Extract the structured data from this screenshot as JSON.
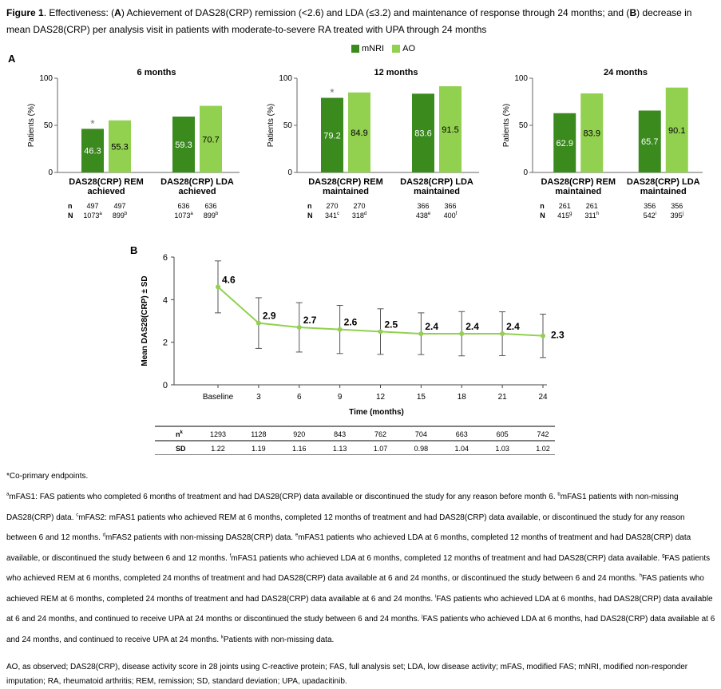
{
  "figure_title": {
    "label": "Figure 1",
    "text_1": ". Effectiveness: (",
    "a": "A",
    "text_2": ") Achievement of DAS28(CRP) remission (<2.6) and LDA (≤3.2) and maintenance of response through 24 months; and (",
    "b": "B",
    "text_3": ") decrease in mean DAS28(CRP) per analysis visit in patients with moderate-to-severe RA treated with UPA through 24 months"
  },
  "panel_a_label": "A",
  "panel_b_label": "B",
  "legend": [
    {
      "name": "mNRI",
      "color": "#3a8a1e"
    },
    {
      "name": "AO",
      "color": "#92d050"
    }
  ],
  "colors": {
    "mnri": "#3a8a1e",
    "ao": "#92d050",
    "line": "#92d050"
  },
  "chart_data": [
    {
      "type": "bar",
      "title": "6 months",
      "ylabel": "Patients (%)",
      "ylim": [
        0,
        100
      ],
      "yticks": [
        0,
        50,
        100
      ],
      "categories": [
        "DAS28(CRP) REM achieved",
        "DAS28(CRP) LDA achieved"
      ],
      "category_lines": [
        [
          "DAS28(CRP) REM",
          "achieved"
        ],
        [
          "DAS28(CRP) LDA",
          "achieved"
        ]
      ],
      "series": [
        {
          "name": "mNRI",
          "values": [
            46.3,
            59.3
          ],
          "labels": [
            "46.3",
            "59.3"
          ]
        },
        {
          "name": "AO",
          "values": [
            55.3,
            70.7
          ],
          "labels": [
            "55.3",
            "70.7"
          ]
        }
      ],
      "asterisk": "*",
      "n_label": "n",
      "N_label": "N",
      "n": [
        [
          "497",
          "497"
        ],
        [
          "636",
          "636"
        ]
      ],
      "N": [
        [
          [
            "1073",
            "a"
          ],
          [
            "899",
            "b"
          ]
        ],
        [
          [
            "1073",
            "a"
          ],
          [
            "899",
            "b"
          ]
        ]
      ]
    },
    {
      "type": "bar",
      "title": "12 months",
      "ylabel": "Patients (%)",
      "ylim": [
        0,
        100
      ],
      "yticks": [
        0,
        50,
        100
      ],
      "categories": [
        "DAS28(CRP) REM maintained",
        "DAS28(CRP) LDA maintained"
      ],
      "category_lines": [
        [
          "DAS28(CRP) REM",
          "maintained"
        ],
        [
          "DAS28(CRP) LDA",
          "maintained"
        ]
      ],
      "series": [
        {
          "name": "mNRI",
          "values": [
            79.2,
            83.6
          ],
          "labels": [
            "79.2",
            "83.6"
          ]
        },
        {
          "name": "AO",
          "values": [
            84.9,
            91.5
          ],
          "labels": [
            "84.9",
            "91.5"
          ]
        }
      ],
      "asterisk": "*",
      "n_label": "n",
      "N_label": "N",
      "n": [
        [
          "270",
          "270"
        ],
        [
          "366",
          "366"
        ]
      ],
      "N": [
        [
          [
            "341",
            "c"
          ],
          [
            "318",
            "d"
          ]
        ],
        [
          [
            "438",
            "e"
          ],
          [
            "400",
            "f"
          ]
        ]
      ]
    },
    {
      "type": "bar",
      "title": "24 months",
      "ylabel": "Patients (%)",
      "ylim": [
        0,
        100
      ],
      "yticks": [
        0,
        50,
        100
      ],
      "categories": [
        "DAS28(CRP) REM maintained",
        "DAS28(CRP) LDA maintained"
      ],
      "category_lines": [
        [
          "DAS28(CRP) REM",
          "maintained"
        ],
        [
          "DAS28(CRP) LDA",
          "maintained"
        ]
      ],
      "series": [
        {
          "name": "mNRI",
          "values": [
            62.9,
            65.7
          ],
          "labels": [
            "62.9",
            "65.7"
          ]
        },
        {
          "name": "AO",
          "values": [
            83.9,
            90.1
          ],
          "labels": [
            "83.9",
            "90.1"
          ]
        }
      ],
      "asterisk": "",
      "n_label": "n",
      "N_label": "N",
      "n": [
        [
          "261",
          "261"
        ],
        [
          "356",
          "356"
        ]
      ],
      "N": [
        [
          [
            "415",
            "g"
          ],
          [
            "311",
            "h"
          ]
        ],
        [
          [
            "542",
            "i"
          ],
          [
            "395",
            "j"
          ]
        ]
      ]
    },
    {
      "type": "line",
      "ylabel": "Mean DAS28(CRP) ± SD",
      "xlabel": "Time (months)",
      "ylim": [
        0,
        6
      ],
      "yticks": [
        0,
        2,
        4,
        6
      ],
      "x": [
        "Baseline",
        "3",
        "6",
        "9",
        "12",
        "15",
        "18",
        "21",
        "24"
      ],
      "y": [
        4.6,
        2.9,
        2.7,
        2.6,
        2.5,
        2.4,
        2.4,
        2.4,
        2.3
      ],
      "y_labels": [
        "4.6",
        "2.9",
        "2.7",
        "2.6",
        "2.5",
        "2.4",
        "2.4",
        "2.4",
        "2.3"
      ],
      "sd": [
        1.22,
        1.19,
        1.16,
        1.13,
        1.07,
        0.98,
        1.04,
        1.03,
        1.02
      ],
      "table": {
        "n_label": "n",
        "n_sup": "k",
        "sd_label": "SD",
        "n": [
          "1293",
          "1128",
          "920",
          "843",
          "762",
          "704",
          "663",
          "605",
          "742"
        ],
        "sd": [
          "1.22",
          "1.19",
          "1.16",
          "1.13",
          "1.07",
          "0.98",
          "1.04",
          "1.03",
          "1.02"
        ]
      }
    }
  ],
  "footnotes": {
    "coprimary": "*Co-primary endpoints.",
    "abbrev_parts": [
      [
        "a",
        "mFAS1: FAS patients who completed 6 months of treatment and had DAS28(CRP) data available or discontinued the study for any reason before month 6. "
      ],
      [
        "b",
        "mFAS1 patients with non-missing DAS28(CRP) data. "
      ],
      [
        "c",
        "mFAS2: mFAS1 patients who achieved REM at 6 months, completed 12 months of treatment and had DAS28(CRP) data available, or discontinued the study for any reason between 6 and 12 months. "
      ],
      [
        "d",
        "mFAS2 patients with non-missing DAS28(CRP) data. "
      ],
      [
        "e",
        "mFAS1 patients who achieved LDA at 6 months, completed 12 months of treatment and had DAS28(CRP) data available, or discontinued the study between 6 and 12 months. "
      ],
      [
        "f",
        "mFAS1 patients who achieved LDA at 6 months, completed 12 months of treatment and had DAS28(CRP) data available. "
      ],
      [
        "g",
        "FAS patients who achieved REM at 6 months, completed 24 months of treatment and had DAS28(CRP) data available at 6 and 24 months, or discontinued the study between 6 and 24 months. "
      ],
      [
        "h",
        "FAS patients who achieved REM at 6 months, completed 24 months of treatment and had DAS28(CRP) data available at 6 and 24 months. "
      ],
      [
        "i",
        "FAS patients who achieved LDA at 6 months, had DAS28(CRP) data available at 6 and 24 months, and continued to receive UPA at 24 months or discontinued the study between 6 and 24 months. "
      ],
      [
        "j",
        "FAS patients who achieved LDA at 6 months, had DAS28(CRP) data available at 6 and 24 months, and continued to receive UPA at 24 months. "
      ],
      [
        "k",
        "Patients with non-missing data."
      ]
    ],
    "abbreviations": "AO, as observed; DAS28(CRP), disease activity score in 28 joints using C-reactive protein; FAS, full analysis set; LDA, low disease activity; mFAS, modified FAS; mNRI, modified non-responder imputation; RA, rheumatoid arthritis; REM, remission; SD, standard deviation; UPA, upadacitinib."
  }
}
